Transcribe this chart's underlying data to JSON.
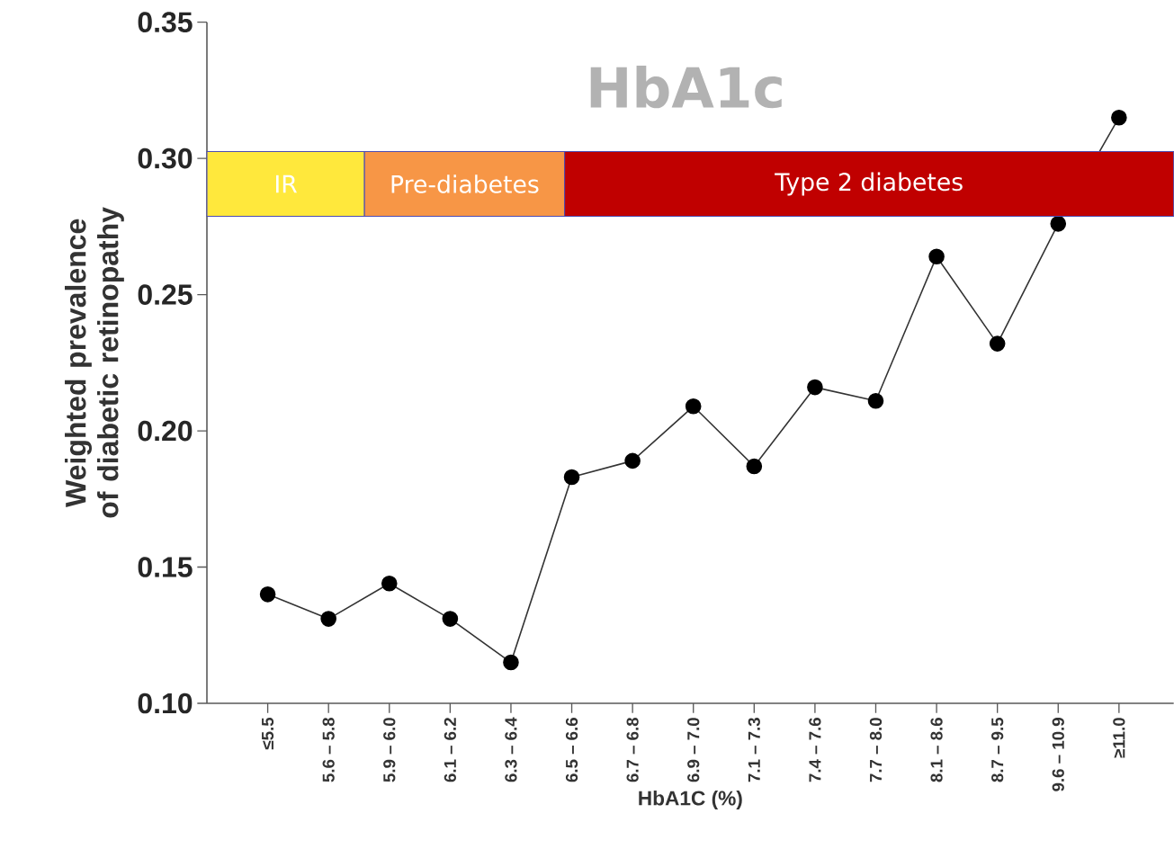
{
  "chart_data": {
    "type": "line",
    "title": "HbA1c",
    "xlabel": "HbA1C (%)",
    "ylabel": "Weighted prevalence of diabetic retinopathy",
    "categories": [
      "≤5.5",
      "5.6 – 5.8",
      "5.9 – 6.0",
      "6.1 – 6.2",
      "6.3 – 6.4",
      "6.5 – 6.6",
      "6.7 – 6.8",
      "6.9 – 7.0",
      "7.1 – 7.3",
      "7.4 – 7.6",
      "7.7 – 8.0",
      "8.1 – 8.6",
      "8.7 – 9.5",
      "9.6 – 10.9",
      "≥11.0"
    ],
    "values": [
      0.14,
      0.131,
      0.144,
      0.131,
      0.115,
      0.183,
      0.189,
      0.209,
      0.187,
      0.216,
      0.211,
      0.264,
      0.232,
      0.276,
      0.315
    ],
    "color": "#000000",
    "marker": "circle",
    "line_style": "solid",
    "ylim": [
      0.1,
      0.35
    ],
    "yticks": [
      {
        "value": 0.1,
        "label": "0.10"
      },
      0.15,
      {
        "value": 0.2,
        "label": "0.20"
      },
      0.25,
      {
        "value": 0.3,
        "label": "0.30"
      },
      0.35
    ],
    "grid": false,
    "legend": false,
    "annotations": [
      "IR",
      "Pre-diabetes",
      "Type 2 diabetes"
    ]
  }
}
